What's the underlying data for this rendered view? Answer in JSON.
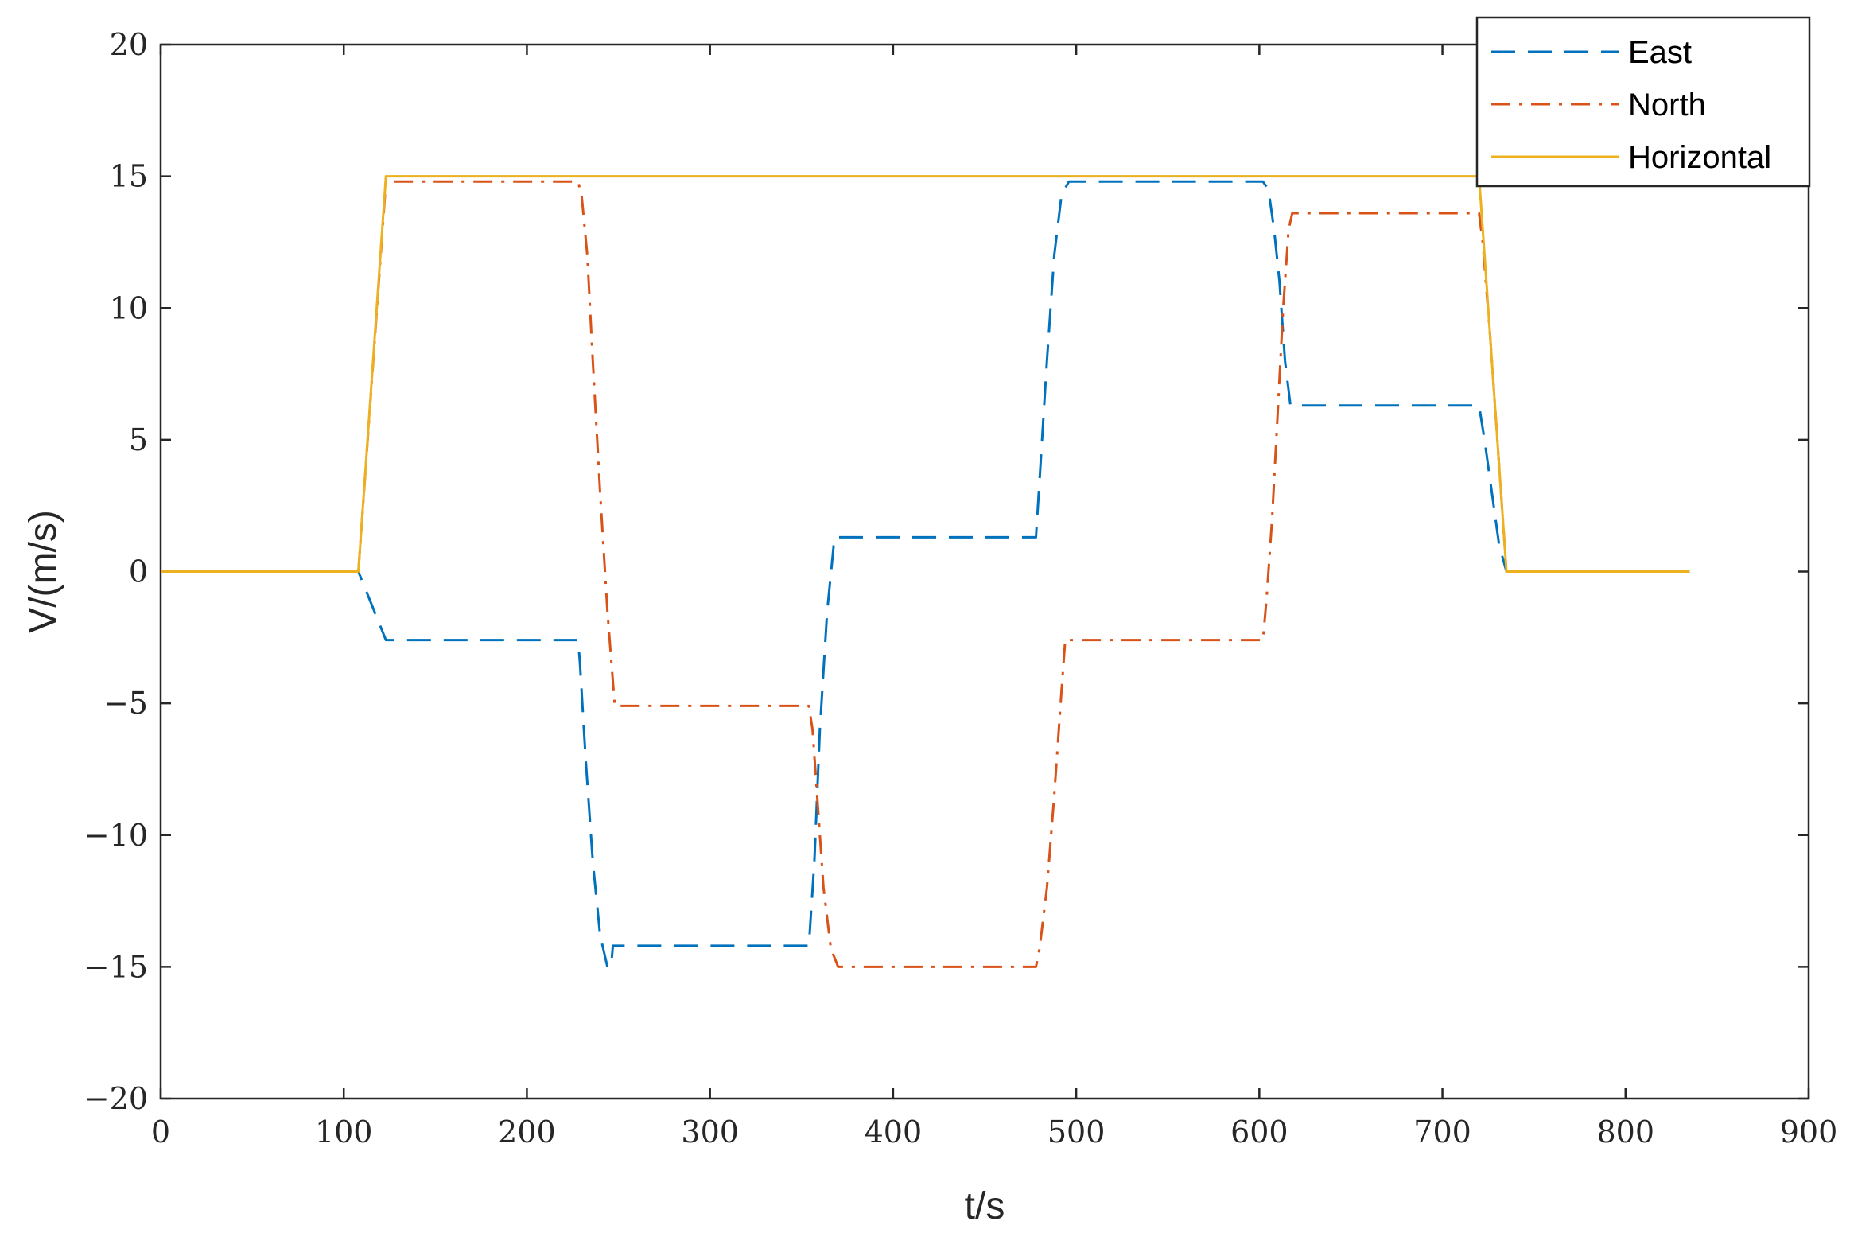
{
  "chart_data": {
    "type": "line",
    "title": "",
    "xlabel": "t/s",
    "ylabel": "V/(m/s)",
    "xlim": [
      0,
      900
    ],
    "ylim": [
      -20,
      20
    ],
    "xticks": [
      0,
      100,
      200,
      300,
      400,
      500,
      600,
      700,
      800,
      900
    ],
    "yticks": [
      -20,
      -15,
      -10,
      -5,
      0,
      5,
      10,
      15,
      20
    ],
    "xtick_labels": [
      "0",
      "100",
      "200",
      "300",
      "400",
      "500",
      "600",
      "700",
      "800",
      "900"
    ],
    "ytick_labels": [
      "−20",
      "−15",
      "−10",
      "−5",
      "0",
      "5",
      "10",
      "15",
      "20"
    ],
    "grid": false,
    "legend_position": "top-right",
    "series": [
      {
        "name": "East",
        "color": "#0072BD",
        "style": "dashed",
        "points": [
          [
            0,
            0
          ],
          [
            108,
            0
          ],
          [
            123,
            -2.6
          ],
          [
            228,
            -2.6
          ],
          [
            229,
            -3.5
          ],
          [
            232,
            -7
          ],
          [
            236,
            -11
          ],
          [
            240,
            -13.8
          ],
          [
            244,
            -15
          ],
          [
            246,
            -15
          ],
          [
            247,
            -14.2
          ],
          [
            354,
            -14.2
          ],
          [
            357,
            -11
          ],
          [
            360,
            -6
          ],
          [
            364,
            -1.5
          ],
          [
            368,
            1.3
          ],
          [
            478,
            1.3
          ],
          [
            480,
            3.5
          ],
          [
            484,
            8
          ],
          [
            488,
            12
          ],
          [
            492,
            14.3
          ],
          [
            496,
            14.8
          ],
          [
            602,
            14.8
          ],
          [
            605,
            14.5
          ],
          [
            608,
            13
          ],
          [
            611,
            11
          ],
          [
            614,
            8
          ],
          [
            617,
            6.3
          ],
          [
            720,
            6.3
          ],
          [
            723,
            5
          ],
          [
            727,
            3
          ],
          [
            731,
            1
          ],
          [
            735,
            0
          ],
          [
            835,
            0
          ]
        ]
      },
      {
        "name": "North",
        "color": "#D95319",
        "style": "dash-dot",
        "points": [
          [
            0,
            0
          ],
          [
            108,
            0
          ],
          [
            123,
            14.8
          ],
          [
            228,
            14.8
          ],
          [
            230,
            14.2
          ],
          [
            233,
            12
          ],
          [
            236,
            8
          ],
          [
            240,
            3
          ],
          [
            244,
            -1.5
          ],
          [
            248,
            -5.1
          ],
          [
            354,
            -5.1
          ],
          [
            356,
            -6
          ],
          [
            359,
            -9
          ],
          [
            362,
            -12
          ],
          [
            366,
            -14.3
          ],
          [
            370,
            -15
          ],
          [
            478,
            -15
          ],
          [
            480,
            -14.3
          ],
          [
            484,
            -12
          ],
          [
            488,
            -8.5
          ],
          [
            492,
            -4.5
          ],
          [
            494,
            -2.6
          ],
          [
            602,
            -2.6
          ],
          [
            604,
            -1
          ],
          [
            607,
            2
          ],
          [
            610,
            6
          ],
          [
            613,
            10
          ],
          [
            616,
            13
          ],
          [
            618,
            13.6
          ],
          [
            720,
            13.6
          ],
          [
            722,
            12.5
          ],
          [
            726,
            9
          ],
          [
            730,
            5
          ],
          [
            733,
            2
          ],
          [
            735,
            0
          ],
          [
            835,
            0
          ]
        ]
      },
      {
        "name": "Horizontal",
        "color": "#EDB120",
        "style": "solid",
        "points": [
          [
            0,
            0
          ],
          [
            108,
            0
          ],
          [
            123,
            15
          ],
          [
            720,
            15
          ],
          [
            735,
            0
          ],
          [
            835,
            0
          ]
        ]
      }
    ]
  }
}
